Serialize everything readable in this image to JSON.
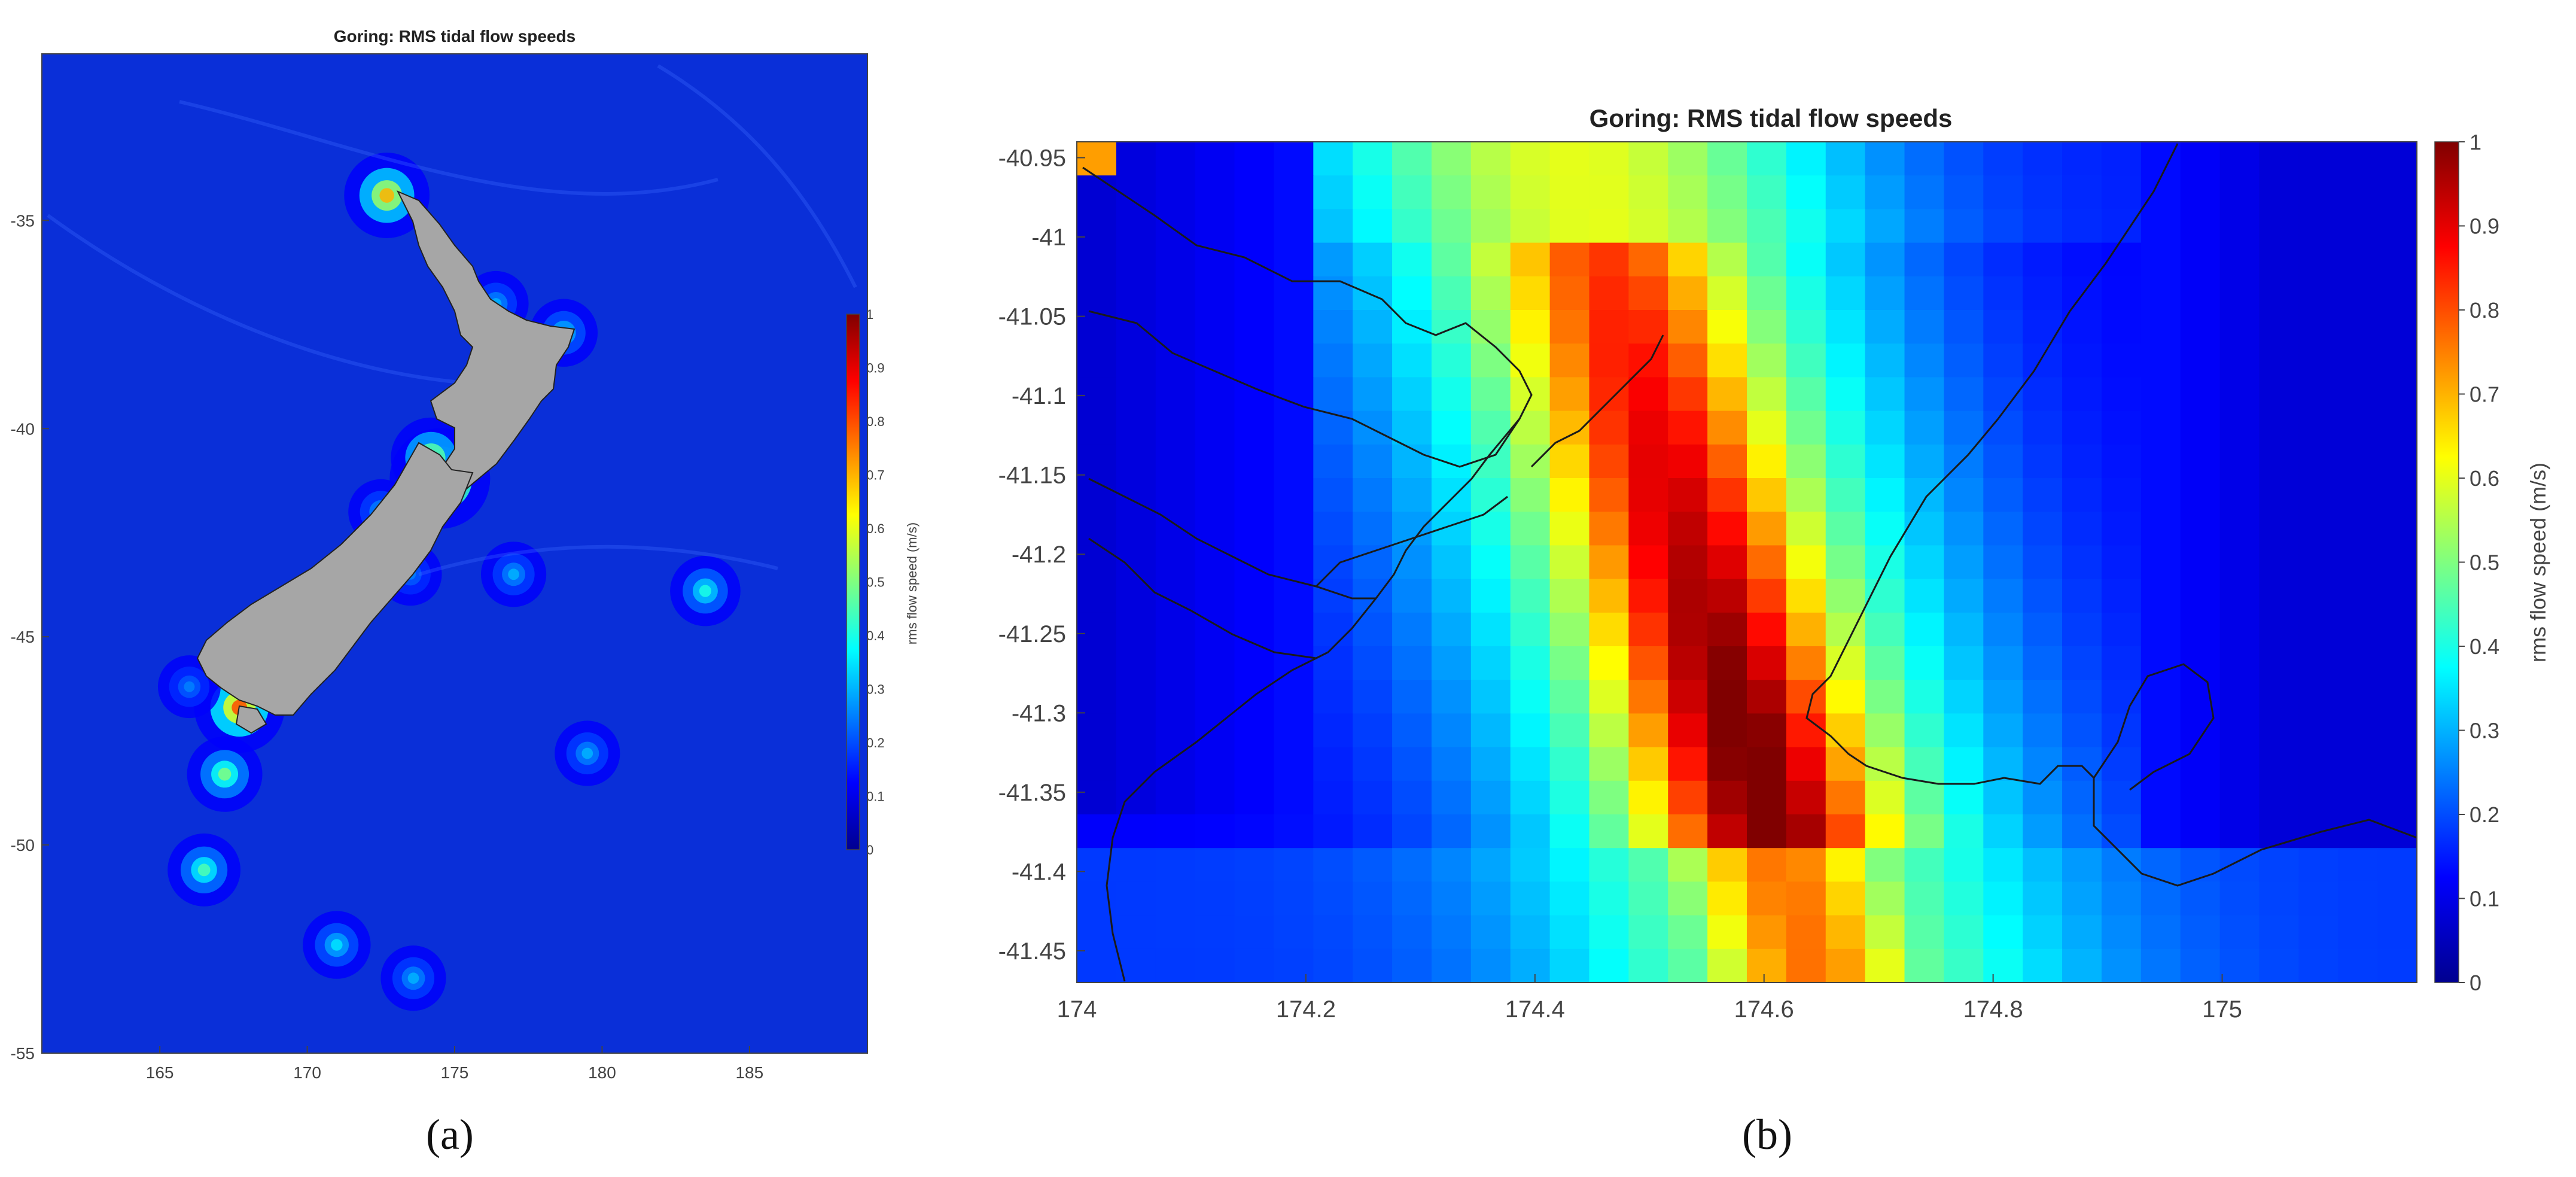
{
  "colors": {
    "ocean": "#0a2fd8",
    "land": "#a6a6a6",
    "coast": "#222222",
    "jet": [
      "#00008f",
      "#0000ff",
      "#00ffff",
      "#ffff00",
      "#ff0000",
      "#800000"
    ]
  },
  "captions": {
    "a": "(a)",
    "b": "(b)"
  },
  "chart_data": [
    {
      "type": "heatmap",
      "title": "Goring: RMS tidal flow speeds",
      "xlabel": "",
      "ylabel": "",
      "xlim": [
        161,
        189
      ],
      "ylim": [
        -55,
        -31
      ],
      "xticks": [
        165,
        170,
        175,
        180,
        185
      ],
      "yticks": [
        -35,
        -40,
        -45,
        -50,
        -55
      ],
      "colorbar": {
        "label": "rms flow speed (m/s)",
        "clim": [
          0,
          1
        ],
        "ticks": [
          1,
          0.9,
          0.8,
          0.7,
          0.6,
          0.5,
          0.4,
          0.3,
          0.2,
          0.1,
          0
        ]
      },
      "background_speed": 0.12,
      "hotspots": [
        {
          "lon": 172.7,
          "lat": -34.4,
          "speed": 0.7
        },
        {
          "lon": 176.4,
          "lat": -37.0,
          "speed": 0.3
        },
        {
          "lon": 178.7,
          "lat": -37.7,
          "speed": 0.35
        },
        {
          "lon": 174.5,
          "lat": -41.2,
          "speed": 1.0
        },
        {
          "lon": 174.2,
          "lat": -40.7,
          "speed": 0.6
        },
        {
          "lon": 172.5,
          "lat": -42.0,
          "speed": 0.3
        },
        {
          "lon": 183.5,
          "lat": -43.9,
          "speed": 0.4
        },
        {
          "lon": 177.0,
          "lat": -43.5,
          "speed": 0.3
        },
        {
          "lon": 173.5,
          "lat": -43.5,
          "speed": 0.25
        },
        {
          "lon": 167.7,
          "lat": -46.7,
          "speed": 0.8
        },
        {
          "lon": 167.2,
          "lat": -48.3,
          "speed": 0.5
        },
        {
          "lon": 166.5,
          "lat": -50.6,
          "speed": 0.45
        },
        {
          "lon": 179.5,
          "lat": -47.8,
          "speed": 0.3
        },
        {
          "lon": 171.0,
          "lat": -52.4,
          "speed": 0.35
        },
        {
          "lon": 173.6,
          "lat": -53.2,
          "speed": 0.3
        },
        {
          "lon": 166.0,
          "lat": -46.2,
          "speed": 0.25
        }
      ]
    },
    {
      "type": "heatmap",
      "title": "Goring: RMS tidal flow speeds",
      "xlabel": "",
      "ylabel": "",
      "xlim": [
        174,
        175.17
      ],
      "ylim": [
        -41.47,
        -40.94
      ],
      "xticks": [
        174,
        174.2,
        174.4,
        174.6,
        174.8,
        175
      ],
      "xticklabels": [
        "174",
        "174.2",
        "174.4",
        "174.6",
        "174.8",
        "175"
      ],
      "yticks": [
        -40.95,
        -41,
        -41.05,
        -41.1,
        -41.15,
        -41.2,
        -41.25,
        -41.3,
        -41.35,
        -41.4,
        -41.45
      ],
      "yticklabels": [
        "-40.95",
        "-41",
        "-41.05",
        "-41.1",
        "-41.15",
        "-41.2",
        "-41.25",
        "-41.3",
        "-41.35",
        "-41.4",
        "-41.45"
      ],
      "colorbar": {
        "label": "rms flow speed (m/s)",
        "clim": [
          0,
          1
        ],
        "ticks": [
          1,
          0.9,
          0.8,
          0.7,
          0.6,
          0.5,
          0.4,
          0.3,
          0.2,
          0.1,
          0
        ]
      },
      "grid": {
        "cols": 34,
        "rows": 25
      },
      "strait_axis_lon": [
        174.35,
        174.62
      ],
      "strait_core_lat": -41.28
    }
  ]
}
